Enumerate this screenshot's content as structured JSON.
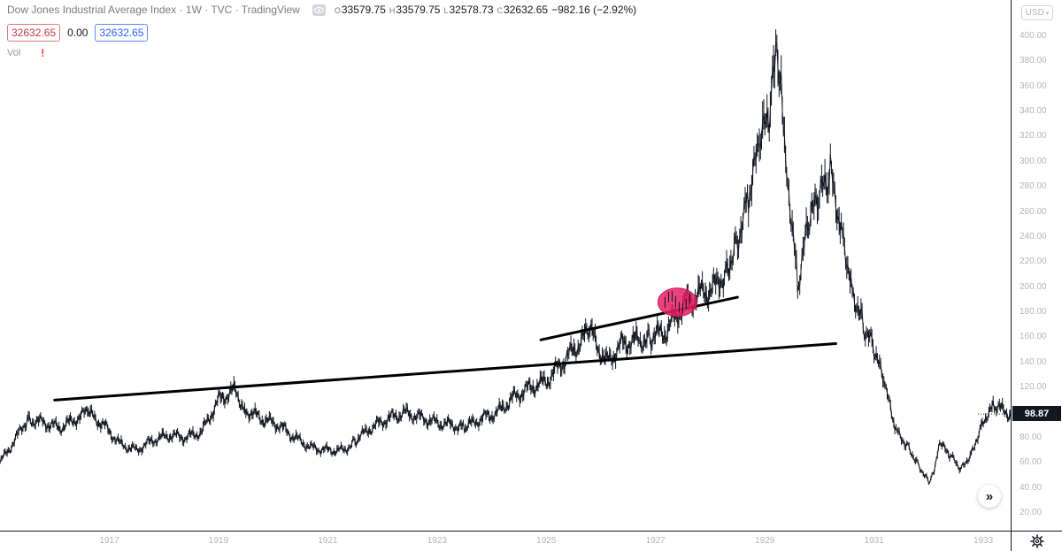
{
  "header": {
    "title": "Dow Jones Industrial Average Index · 1W · TVC · TradingView",
    "ohlc": [
      {
        "key": "O",
        "value": "33579.75"
      },
      {
        "key": "H",
        "value": "33579.75"
      },
      {
        "key": "L",
        "value": "32578.73"
      },
      {
        "key": "C",
        "value": "32632.65"
      }
    ],
    "change": "−982.16 (−2.92%)"
  },
  "legend_values": {
    "price_box": "32632.65",
    "zero": "0.00",
    "price_box_blue": "32632.65"
  },
  "volume": {
    "label": "Vol",
    "warning": "!"
  },
  "price_axis": {
    "currency": "USD",
    "last_price": "98.87",
    "ticks": [
      "400.00",
      "380.00",
      "360.00",
      "340.00",
      "320.00",
      "300.00",
      "280.00",
      "260.00",
      "240.00",
      "220.00",
      "200.00",
      "180.00",
      "160.00",
      "140.00",
      "120.00",
      "100.00",
      "80.00",
      "60.00",
      "40.00",
      "20.00"
    ]
  },
  "time_axis": {
    "ticks": [
      "1917",
      "1919",
      "1921",
      "1923",
      "1925",
      "1927",
      "1929",
      "1931",
      "1933"
    ]
  },
  "colors": {
    "line": "#131722",
    "trendline": "#000000",
    "highlight": "#e91e63",
    "down": "#c6394a",
    "up": "#2962ff"
  },
  "icons": {
    "settings": "gear-icon",
    "scroll": "double-chevron-right-icon",
    "visibility": "eye-icon",
    "currency_dropdown": "chevron-down-icon"
  },
  "chart_data": {
    "type": "line",
    "xlabel": "",
    "ylabel": "",
    "ylim": [
      0,
      410
    ],
    "xlim": [
      1915.5,
      1934.0
    ],
    "grid": false,
    "series": [
      {
        "x": [
          1915.5,
          1915.8,
          1916.0,
          1916.3,
          1916.6,
          1916.9,
          1917.1,
          1917.4,
          1917.7,
          1918.0,
          1918.3,
          1918.6,
          1918.9,
          1919.2,
          1919.5,
          1919.8,
          1920.0,
          1920.3,
          1920.6,
          1920.9,
          1921.2,
          1921.5,
          1921.8,
          1922.0,
          1922.3,
          1922.6,
          1922.9,
          1923.2,
          1923.5,
          1923.8,
          1924.0,
          1924.3,
          1924.6,
          1924.9,
          1925.2,
          1925.5,
          1925.8,
          1926.1,
          1926.3,
          1926.6,
          1926.9,
          1927.2,
          1927.4,
          1927.7,
          1928.0,
          1928.3,
          1928.6,
          1928.8,
          1929.0,
          1929.2,
          1929.4,
          1929.6,
          1929.7,
          1929.8,
          1929.9,
          1930.1,
          1930.3,
          1930.5,
          1930.7,
          1930.9,
          1931.1,
          1931.3,
          1931.5,
          1931.7,
          1931.9,
          1932.1,
          1932.3,
          1932.5,
          1932.6,
          1932.7,
          1932.9,
          1933.1,
          1933.3,
          1933.5,
          1933.7,
          1934.0
        ],
        "y": [
          60,
          80,
          95,
          92,
          88,
          95,
          100,
          90,
          75,
          70,
          78,
          82,
          80,
          85,
          110,
          118,
          102,
          95,
          90,
          80,
          72,
          70,
          70,
          78,
          88,
          95,
          100,
          96,
          92,
          90,
          88,
          95,
          100,
          112,
          120,
          125,
          140,
          155,
          165,
          140,
          155,
          158,
          160,
          165,
          185,
          195,
          200,
          215,
          240,
          270,
          310,
          340,
          380,
          360,
          300,
          200,
          250,
          270,
          290,
          250,
          200,
          170,
          150,
          120,
          85,
          75,
          60,
          45,
          55,
          75,
          65,
          55,
          70,
          95,
          105,
          98.87
        ]
      }
    ],
    "annotations": [
      {
        "type": "trendline",
        "points": [
          [
            1916.5,
            110
          ],
          [
            1930.8,
            155
          ]
        ]
      },
      {
        "type": "trendline",
        "points": [
          [
            1925.4,
            158
          ],
          [
            1929.0,
            192
          ]
        ]
      },
      {
        "type": "highlight-ellipse",
        "center": [
          1927.9,
          188
        ]
      }
    ]
  }
}
